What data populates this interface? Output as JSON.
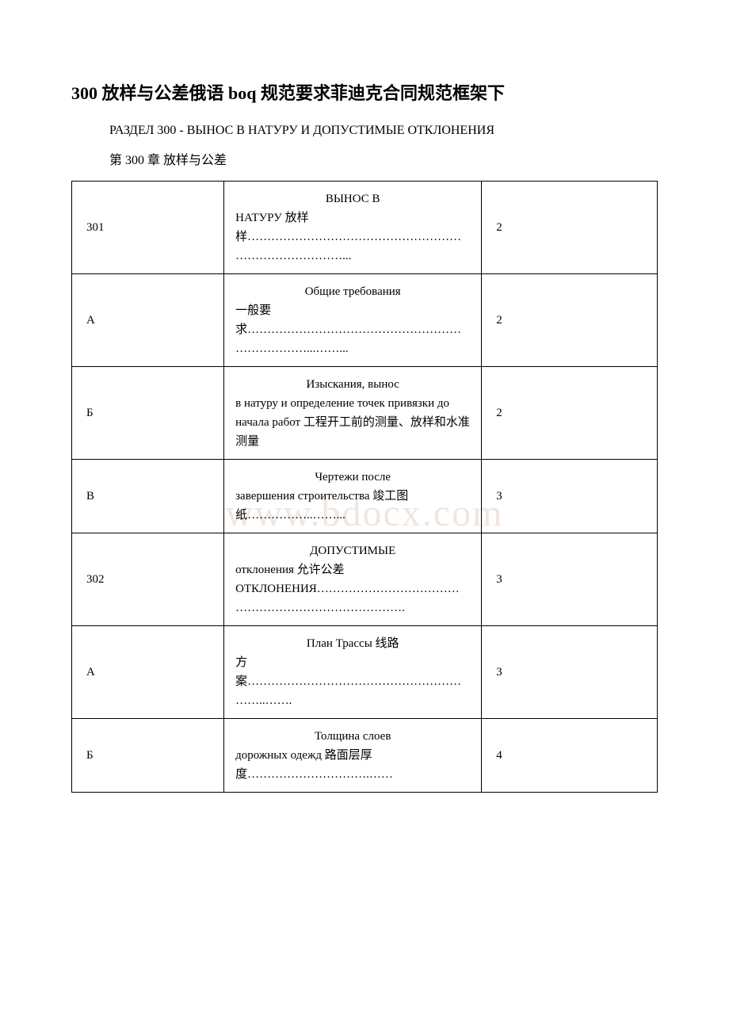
{
  "title": "300 放样与公差俄语 boq 规范要求菲迪克合同规范框架下",
  "subtitle_ru": "РАЗДЕЛ 300 - ВЫНОС В НАТУРУ И ДОПУСТИМЫЕ ОТКЛОНЕНИЯ",
  "subtitle_cn": "第 300 章 放样与公差",
  "watermark": "www.bdocx.com",
  "rows": [
    {
      "code": "301",
      "desc_head": "ВЫНОС В",
      "desc_body": "НАТУРУ 放样样………………………………………………………………………...",
      "page": "2"
    },
    {
      "code": "А",
      "desc_head": "Общие требования",
      "desc_body": "一般要求………………………………………………………………...……...",
      "page": "2"
    },
    {
      "code": "Б",
      "desc_head": "Изыскания, вынос",
      "desc_body": "в натуру и определение точек привязки до начала работ 工程开工前的测量、放样和水准测量",
      "page": "2"
    },
    {
      "code": "В",
      "desc_head": "Чертежи после",
      "desc_body": "завершения строительства 竣工图纸……………..……...",
      "page": "3"
    },
    {
      "code": "302",
      "desc_head": "ДОПУСТИМЫЕ",
      "desc_body": "отклонения 允许公差ОТКЛОНЕНИЯ…………………………………………………………………….",
      "page": "3"
    },
    {
      "code": "А",
      "desc_head": "План Трассы 线路",
      "desc_body": "方案……………………………………………………..…….",
      "page": "3"
    },
    {
      "code": "Б",
      "desc_head": "Толщина слоев",
      "desc_body": "дорожных одежд 路面层厚度………………………….……",
      "page": "4"
    }
  ]
}
